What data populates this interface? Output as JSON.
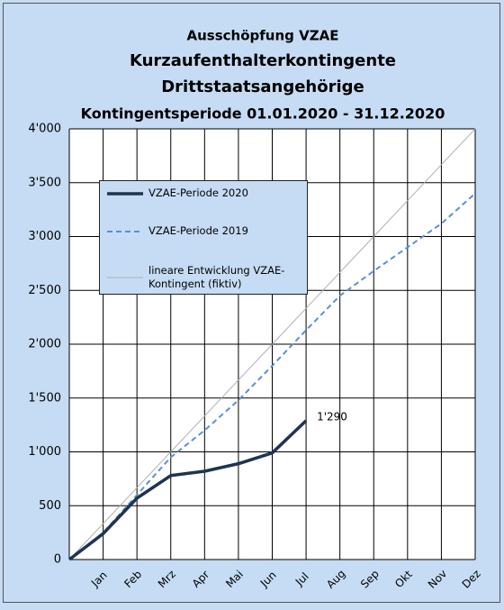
{
  "chart_data": {
    "type": "line",
    "title": [
      "Ausschöpfung VZAE",
      "Kurzaufenthalterkontingente",
      "Drittstaatsangehörige",
      "Kontingentsperiode 01.01.2020 - 31.12.2020"
    ],
    "categories": [
      null,
      "Jan",
      "Feb",
      "Mrz",
      "Apr",
      "Mai",
      "Jun",
      "Jul",
      "Aug",
      "Sep",
      "Okt",
      "Nov",
      "Dez"
    ],
    "series": [
      {
        "name": "VZAE-Periode 2020",
        "color": "#1f3450",
        "style": "solid",
        "values": [
          0,
          240,
          570,
          780,
          820,
          890,
          990,
          1290,
          null,
          null,
          null,
          null,
          null
        ],
        "value_labels": [
          null,
          null,
          null,
          null,
          null,
          null,
          null,
          "1'290",
          null,
          null,
          null,
          null,
          null
        ]
      },
      {
        "name": "VZAE-Periode 2019",
        "color": "#5b8fd6",
        "style": "dashed",
        "values": [
          0,
          250,
          600,
          950,
          1200,
          1480,
          1800,
          2130,
          2450,
          2680,
          2900,
          3120,
          3400
        ]
      },
      {
        "name": "lineare Entwicklung VZAE-Kontingent (fiktiv)",
        "color": "#b0b0b0",
        "style": "thin",
        "values": [
          0,
          333,
          667,
          1000,
          1333,
          1667,
          2000,
          2333,
          2667,
          3000,
          3333,
          3667,
          4000
        ]
      }
    ],
    "ylim": [
      0,
      4000
    ],
    "yticks": [
      0,
      500,
      {
        "value": 1000,
        "label": "1'000"
      },
      {
        "value": 1500,
        "label": "1'500"
      },
      {
        "value": 2000,
        "label": "2'000"
      },
      {
        "value": 2500,
        "label": "2'500"
      },
      {
        "value": 3000,
        "label": "3'000"
      },
      {
        "value": 3500,
        "label": "3'500"
      },
      {
        "value": 4000,
        "label": "4'000"
      }
    ],
    "grid": true
  }
}
